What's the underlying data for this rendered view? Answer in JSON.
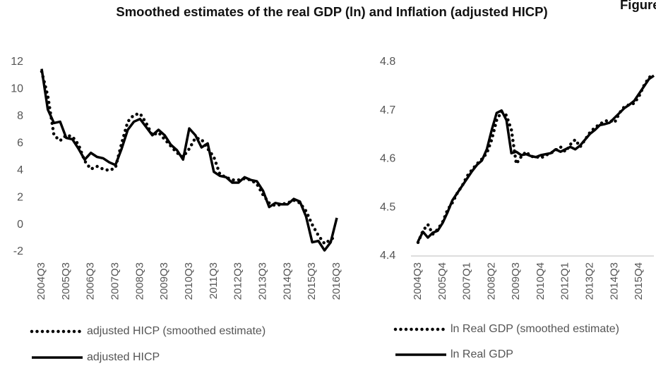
{
  "title": "Smoothed estimates of the real GDP (ln) and Inflation (adjusted HICP)",
  "figure_label": "Figure",
  "chart_data": [
    {
      "type": "line",
      "categories": [
        "2004Q3",
        null,
        null,
        null,
        "2005Q3",
        null,
        null,
        null,
        "2006Q3",
        null,
        null,
        null,
        "2007Q3",
        null,
        null,
        null,
        "2008Q3",
        null,
        null,
        null,
        "2009Q3",
        null,
        null,
        null,
        "2010Q3",
        null,
        null,
        null,
        "2011Q3",
        null,
        null,
        null,
        "2012Q3",
        null,
        null,
        null,
        "2013Q3",
        null,
        null,
        null,
        "2014Q3",
        null,
        null,
        null,
        "2015Q3",
        null,
        null,
        null,
        "2016Q3"
      ],
      "ylim": [
        -2,
        12
      ],
      "yticks": [
        -2,
        0,
        2,
        4,
        6,
        8,
        10,
        12
      ],
      "grid": false,
      "x_axis_line": false,
      "legend": "bottom",
      "series": [
        {
          "name": "adjusted HICP (smoothed estimate)",
          "color": "#000000",
          "dash": "dotted",
          "values": [
            11.3,
            9.5,
            6.6,
            6.2,
            6.6,
            6.5,
            5.9,
            4.7,
            4.1,
            4.3,
            4.1,
            4.0,
            4.2,
            6.0,
            7.6,
            8.1,
            8.2,
            7.5,
            6.6,
            6.8,
            6.3,
            5.8,
            5.3,
            5.0,
            5.6,
            6.4,
            6.3,
            5.6,
            5.0,
            3.7,
            3.5,
            3.3,
            3.3,
            3.4,
            3.3,
            3.0,
            2.2,
            1.6,
            1.4,
            1.5,
            1.6,
            1.8,
            1.6,
            1.0,
            0.0,
            -0.8,
            -1.4,
            -1.1,
            -0.8
          ]
        },
        {
          "name": "adjusted HICP",
          "color": "#000000",
          "dash": "solid",
          "values": [
            11.5,
            8.5,
            7.5,
            7.6,
            6.4,
            6.3,
            5.6,
            4.8,
            5.3,
            5.0,
            4.9,
            4.6,
            4.4,
            5.6,
            7.0,
            7.6,
            7.8,
            7.2,
            6.6,
            7.0,
            6.6,
            5.9,
            5.5,
            4.8,
            7.1,
            6.6,
            5.7,
            6.0,
            3.9,
            3.6,
            3.5,
            3.1,
            3.1,
            3.5,
            3.3,
            3.2,
            2.5,
            1.3,
            1.6,
            1.5,
            1.5,
            1.9,
            1.7,
            0.6,
            -1.3,
            -1.2,
            -1.9,
            -1.3,
            0.5
          ]
        }
      ]
    },
    {
      "type": "line",
      "categories": [
        "2004Q3",
        null,
        null,
        null,
        null,
        "2005Q4",
        null,
        null,
        null,
        null,
        "2007Q1",
        null,
        null,
        null,
        null,
        "2008Q2",
        null,
        null,
        null,
        null,
        "2009Q3",
        null,
        null,
        null,
        null,
        "2010Q4",
        null,
        null,
        null,
        null,
        "2012Q1",
        null,
        null,
        null,
        null,
        "2013Q2",
        null,
        null,
        null,
        null,
        "2014Q3",
        null,
        null,
        null,
        null,
        "2015Q4",
        null,
        null,
        null
      ],
      "ylim": [
        4.4,
        4.8
      ],
      "yticks": [
        4.4,
        4.5,
        4.6,
        4.7,
        4.8
      ],
      "grid": false,
      "x_axis_line": true,
      "legend": "bottom",
      "series": [
        {
          "name": "ln Real GDP (smoothed estimate)",
          "color": "#000000",
          "dash": "dotted",
          "values": [
            4.428,
            4.452,
            4.465,
            4.445,
            4.455,
            4.47,
            4.495,
            4.51,
            4.53,
            4.545,
            4.565,
            4.578,
            4.59,
            4.6,
            4.612,
            4.64,
            4.68,
            4.698,
            4.69,
            4.66,
            4.59,
            4.605,
            4.615,
            4.605,
            4.605,
            4.602,
            4.608,
            4.612,
            4.618,
            4.625,
            4.615,
            4.63,
            4.64,
            4.625,
            4.64,
            4.655,
            4.665,
            4.672,
            4.678,
            4.68,
            4.675,
            4.695,
            4.708,
            4.712,
            4.715,
            4.73,
            4.752,
            4.768,
            4.775
          ]
        },
        {
          "name": "ln Real GDP",
          "color": "#000000",
          "dash": "solid",
          "values": [
            4.43,
            4.45,
            4.438,
            4.448,
            4.452,
            4.468,
            4.49,
            4.515,
            4.53,
            4.545,
            4.56,
            4.575,
            4.588,
            4.597,
            4.62,
            4.66,
            4.695,
            4.7,
            4.68,
            4.612,
            4.615,
            4.608,
            4.61,
            4.606,
            4.604,
            4.608,
            4.61,
            4.612,
            4.62,
            4.615,
            4.62,
            4.625,
            4.62,
            4.628,
            4.64,
            4.652,
            4.66,
            4.67,
            4.672,
            4.675,
            4.685,
            4.695,
            4.705,
            4.712,
            4.72,
            4.735,
            4.75,
            4.765,
            4.772
          ]
        }
      ]
    }
  ]
}
